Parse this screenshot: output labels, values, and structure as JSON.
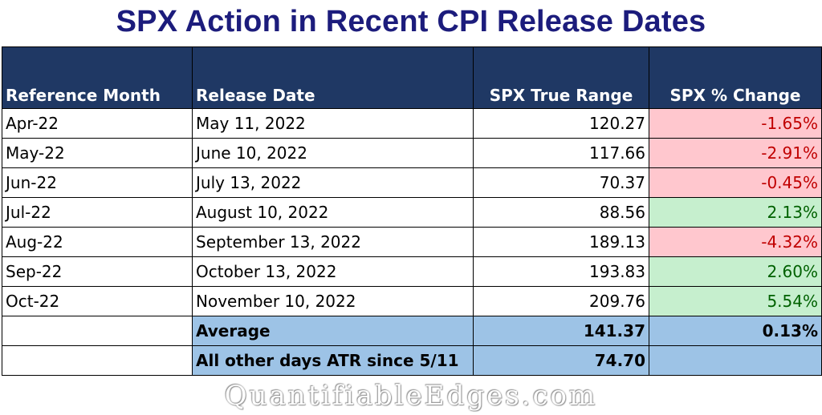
{
  "chart_data": {
    "type": "table",
    "title": "SPX Action in Recent CPI Release Dates",
    "columns": [
      "Reference Month",
      "Release Date",
      "SPX True Range",
      "SPX % Change"
    ],
    "rows": [
      {
        "reference_month": "Apr-22",
        "release_date": "May 11, 2022",
        "true_range": "120.27",
        "pct_change": "-1.65%",
        "direction": "negative"
      },
      {
        "reference_month": "May-22",
        "release_date": "June 10, 2022",
        "true_range": "117.66",
        "pct_change": "-2.91%",
        "direction": "negative"
      },
      {
        "reference_month": "Jun-22",
        "release_date": "July 13, 2022",
        "true_range": "70.37",
        "pct_change": "-0.45%",
        "direction": "negative"
      },
      {
        "reference_month": "Jul-22",
        "release_date": "August 10, 2022",
        "true_range": "88.56",
        "pct_change": "2.13%",
        "direction": "positive"
      },
      {
        "reference_month": "Aug-22",
        "release_date": "September 13, 2022",
        "true_range": "189.13",
        "pct_change": "-4.32%",
        "direction": "negative"
      },
      {
        "reference_month": "Sep-22",
        "release_date": "October 13, 2022",
        "true_range": "193.83",
        "pct_change": "2.60%",
        "direction": "positive"
      },
      {
        "reference_month": "Oct-22",
        "release_date": "November 10, 2022",
        "true_range": "209.76",
        "pct_change": "5.54%",
        "direction": "positive"
      }
    ],
    "summary": [
      {
        "label": "Average",
        "true_range": "141.37",
        "pct_change": "0.13%"
      },
      {
        "label": "All other days ATR since 5/11",
        "true_range": "74.70",
        "pct_change": ""
      }
    ],
    "colors": {
      "header_bg": "#1f3864",
      "title": "#1c1c7c",
      "negative_bg": "#ffc7ce",
      "negative_text": "#c00000",
      "positive_bg": "#c6efce",
      "positive_text": "#006100",
      "summary_bg": "#9dc3e6"
    }
  },
  "watermark": "QuantifiableEdges.com"
}
